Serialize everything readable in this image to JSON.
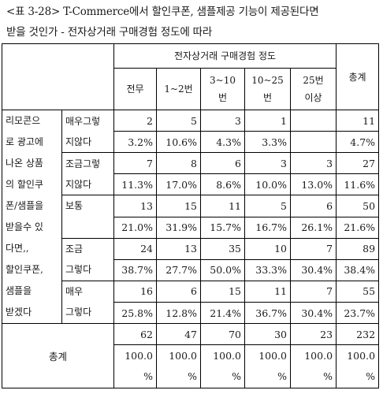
{
  "title": {
    "line1": "<표 3-28> T-Commerce에서 할인쿠폰, 샘플제공 기능이 제공된다면",
    "line2": "받을 것인가 - 전자상거래 구매경험 정도에 따라"
  },
  "table": {
    "group_header": "전자상거래 구매경험 정도",
    "total_header": "총계",
    "question": [
      "리모콘으",
      "로 광고에",
      "나온 상품",
      "의 할인쿠",
      "폰/샘플을",
      "받을수 있",
      "다면,,",
      "할인쿠폰,",
      "샘플을",
      "받겠다"
    ],
    "columns": [
      {
        "line1": "전무",
        "line2": ""
      },
      {
        "line1": "1~2번",
        "line2": ""
      },
      {
        "line1": "3~10",
        "line2": "번"
      },
      {
        "line1": "10~25",
        "line2": "번"
      },
      {
        "line1": "25번",
        "line2": "이상"
      }
    ],
    "rows": [
      {
        "label1": "매우그렇",
        "label2": "지않다",
        "counts": [
          "2",
          "5",
          "3",
          "1",
          "",
          "11"
        ],
        "pcts": [
          "3.2%",
          "10.6%",
          "4.3%",
          "3.3%",
          "",
          "4.7%"
        ]
      },
      {
        "label1": "조금그렇",
        "label2": "지않다",
        "counts": [
          "7",
          "8",
          "6",
          "3",
          "3",
          "27"
        ],
        "pcts": [
          "11.3%",
          "17.0%",
          "8.6%",
          "10.0%",
          "13.0%",
          "11.6%"
        ]
      },
      {
        "label1": "보통",
        "label2": "",
        "counts": [
          "13",
          "15",
          "11",
          "5",
          "6",
          "50"
        ],
        "pcts": [
          "21.0%",
          "31.9%",
          "15.7%",
          "16.7%",
          "26.1%",
          "21.6%"
        ]
      },
      {
        "label1": "조금",
        "label2": "그렇다",
        "counts": [
          "24",
          "13",
          "35",
          "10",
          "7",
          "89"
        ],
        "pcts": [
          "38.7%",
          "27.7%",
          "50.0%",
          "33.3%",
          "30.4%",
          "38.4%"
        ]
      },
      {
        "label1": "매우",
        "label2": "그렇다",
        "counts": [
          "16",
          "6",
          "15",
          "11",
          "7",
          "55"
        ],
        "pcts": [
          "25.8%",
          "12.8%",
          "21.4%",
          "36.7%",
          "30.4%",
          "23.7%"
        ]
      }
    ],
    "total": {
      "label": "총계",
      "counts": [
        "62",
        "47",
        "70",
        "30",
        "23",
        "232"
      ],
      "pct_value": "100.0",
      "pct_unit": "%"
    }
  }
}
